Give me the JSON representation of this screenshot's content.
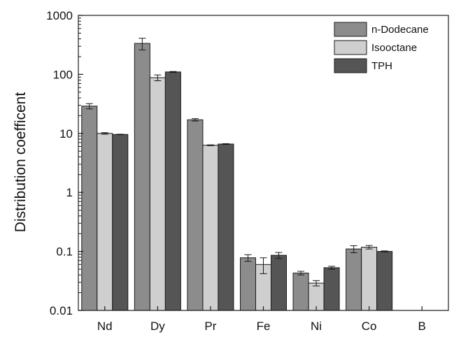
{
  "chart_data": {
    "type": "bar",
    "title": "",
    "xlabel": "",
    "ylabel": "Distribution coefficent",
    "yscale": "log",
    "ylim": [
      0.01,
      1000
    ],
    "y_ticks": [
      0.01,
      0.1,
      1,
      10,
      100,
      1000
    ],
    "y_tick_labels": [
      "0.01",
      "0.1",
      "1",
      "10",
      "100",
      "1000"
    ],
    "categories": [
      "Nd",
      "Dy",
      "Pr",
      "Fe",
      "Ni",
      "Co",
      "B"
    ],
    "legend_position": "top-right",
    "series": [
      {
        "name": "n-Dodecane",
        "color": "#8c8c8c",
        "values": [
          29,
          335,
          17,
          0.078,
          0.043,
          0.11,
          null
        ],
        "errors": [
          3,
          75,
          0.8,
          0.01,
          0.003,
          0.015,
          null
        ]
      },
      {
        "name": "Isooctane",
        "color": "#cfcfcf",
        "values": [
          10,
          88,
          6.3,
          0.06,
          0.029,
          0.118,
          null
        ],
        "errors": [
          0.3,
          10,
          0.1,
          0.018,
          0.003,
          0.008,
          null
        ]
      },
      {
        "name": "TPH",
        "color": "#555555",
        "values": [
          9.6,
          110,
          6.6,
          0.086,
          0.053,
          0.1,
          null
        ],
        "errors": [
          0.1,
          2,
          0.1,
          0.01,
          0.003,
          0.002,
          null
        ]
      }
    ]
  }
}
